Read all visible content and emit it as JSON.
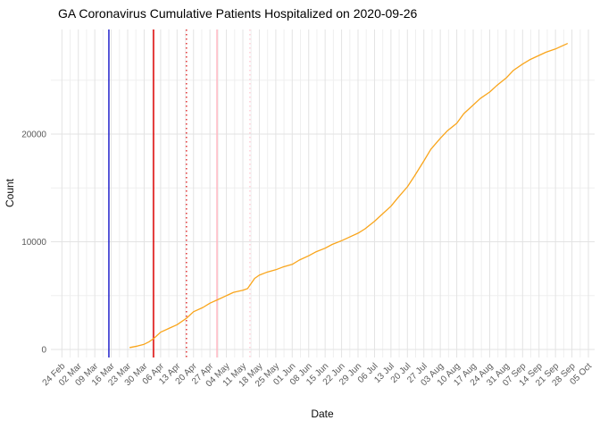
{
  "chart_data": {
    "type": "line",
    "title": "GA Coronavirus Cumulative Patients Hospitalized on 2020-09-26",
    "xlabel": "Date",
    "ylabel": "Count",
    "grid": true,
    "legend": "none",
    "x_axis": {
      "start": "2020-02-24",
      "end": "2020-10-05",
      "tick_interval_days": 7
    },
    "y_axis": {
      "min": 0,
      "max": 29500,
      "major_tick_interval": 10000,
      "minor_tick_interval": 5000
    },
    "x_ticks": [
      {
        "label": "24 Feb",
        "date": "2020-02-24"
      },
      {
        "label": "02 Mar",
        "date": "2020-03-02"
      },
      {
        "label": "09 Mar",
        "date": "2020-03-09"
      },
      {
        "label": "16 Mar",
        "date": "2020-03-16"
      },
      {
        "label": "23 Mar",
        "date": "2020-03-23"
      },
      {
        "label": "30 Mar",
        "date": "2020-03-30"
      },
      {
        "label": "06 Apr",
        "date": "2020-04-06"
      },
      {
        "label": "13 Apr",
        "date": "2020-04-13"
      },
      {
        "label": "20 Apr",
        "date": "2020-04-20"
      },
      {
        "label": "27 Apr",
        "date": "2020-04-27"
      },
      {
        "label": "04 May",
        "date": "2020-05-04"
      },
      {
        "label": "11 May",
        "date": "2020-05-11"
      },
      {
        "label": "18 May",
        "date": "2020-05-18"
      },
      {
        "label": "25 May",
        "date": "2020-05-25"
      },
      {
        "label": "01 Jun",
        "date": "2020-06-01"
      },
      {
        "label": "08 Jun",
        "date": "2020-06-08"
      },
      {
        "label": "15 Jun",
        "date": "2020-06-15"
      },
      {
        "label": "22 Jun",
        "date": "2020-06-22"
      },
      {
        "label": "29 Jun",
        "date": "2020-06-29"
      },
      {
        "label": "06 Jul",
        "date": "2020-07-06"
      },
      {
        "label": "13 Jul",
        "date": "2020-07-13"
      },
      {
        "label": "20 Jul",
        "date": "2020-07-20"
      },
      {
        "label": "27 Jul",
        "date": "2020-07-27"
      },
      {
        "label": "03 Aug",
        "date": "2020-08-03"
      },
      {
        "label": "10 Aug",
        "date": "2020-08-10"
      },
      {
        "label": "17 Aug",
        "date": "2020-08-17"
      },
      {
        "label": "24 Aug",
        "date": "2020-08-24"
      },
      {
        "label": "31 Aug",
        "date": "2020-08-31"
      },
      {
        "label": "07 Sep",
        "date": "2020-09-07"
      },
      {
        "label": "14 Sep",
        "date": "2020-09-14"
      },
      {
        "label": "21 Sep",
        "date": "2020-09-21"
      },
      {
        "label": "28 Sep",
        "date": "2020-09-28"
      },
      {
        "label": "05 Oct",
        "date": "2020-10-05"
      }
    ],
    "y_ticks": [
      {
        "label": "0",
        "value": 0
      },
      {
        "label": "10000",
        "value": 10000
      },
      {
        "label": "20000",
        "value": 20000
      }
    ],
    "vlines": [
      {
        "date": "2020-03-15",
        "color": "#2222CC",
        "style": "solid"
      },
      {
        "date": "2020-04-03",
        "color": "#DD0000",
        "style": "solid"
      },
      {
        "date": "2020-04-17",
        "color": "#E03333",
        "style": "dotted"
      },
      {
        "date": "2020-04-30",
        "color": "#FFB6C1",
        "style": "solid"
      },
      {
        "date": "2020-05-14",
        "color": "#FFCCD5",
        "style": "dotted"
      }
    ],
    "style": {
      "line_color": "#F9A51B",
      "grid_major": "#E3E3E3",
      "grid_minor": "#EFEFEF"
    },
    "series": [
      {
        "name": "cumulative-patients-hospitalized",
        "color": "#F9A51B",
        "points": [
          [
            "2020-03-24",
            180
          ],
          [
            "2020-03-27",
            310
          ],
          [
            "2020-03-30",
            480
          ],
          [
            "2020-04-01",
            700
          ],
          [
            "2020-04-03",
            1000
          ],
          [
            "2020-04-06",
            1600
          ],
          [
            "2020-04-10",
            2000
          ],
          [
            "2020-04-13",
            2300
          ],
          [
            "2020-04-17",
            2900
          ],
          [
            "2020-04-20",
            3500
          ],
          [
            "2020-04-24",
            3900
          ],
          [
            "2020-04-27",
            4300
          ],
          [
            "2020-04-30",
            4600
          ],
          [
            "2020-05-04",
            5000
          ],
          [
            "2020-05-07",
            5300
          ],
          [
            "2020-05-11",
            5500
          ],
          [
            "2020-05-13",
            5650
          ],
          [
            "2020-05-16",
            6600
          ],
          [
            "2020-05-18",
            6900
          ],
          [
            "2020-05-21",
            7150
          ],
          [
            "2020-05-25",
            7400
          ],
          [
            "2020-05-28",
            7650
          ],
          [
            "2020-06-01",
            7900
          ],
          [
            "2020-06-04",
            8300
          ],
          [
            "2020-06-08",
            8700
          ],
          [
            "2020-06-11",
            9050
          ],
          [
            "2020-06-15",
            9400
          ],
          [
            "2020-06-18",
            9750
          ],
          [
            "2020-06-22",
            10100
          ],
          [
            "2020-06-25",
            10400
          ],
          [
            "2020-06-29",
            10800
          ],
          [
            "2020-07-02",
            11200
          ],
          [
            "2020-07-06",
            11900
          ],
          [
            "2020-07-09",
            12500
          ],
          [
            "2020-07-13",
            13300
          ],
          [
            "2020-07-16",
            14100
          ],
          [
            "2020-07-20",
            15100
          ],
          [
            "2020-07-23",
            16100
          ],
          [
            "2020-07-27",
            17500
          ],
          [
            "2020-07-30",
            18600
          ],
          [
            "2020-08-03",
            19600
          ],
          [
            "2020-08-06",
            20300
          ],
          [
            "2020-08-10",
            21000
          ],
          [
            "2020-08-13",
            21900
          ],
          [
            "2020-08-17",
            22700
          ],
          [
            "2020-08-20",
            23300
          ],
          [
            "2020-08-24",
            23900
          ],
          [
            "2020-08-27",
            24500
          ],
          [
            "2020-08-31",
            25200
          ],
          [
            "2020-09-03",
            25900
          ],
          [
            "2020-09-07",
            26500
          ],
          [
            "2020-09-10",
            26900
          ],
          [
            "2020-09-14",
            27300
          ],
          [
            "2020-09-17",
            27600
          ],
          [
            "2020-09-21",
            27900
          ],
          [
            "2020-09-24",
            28200
          ],
          [
            "2020-09-26",
            28400
          ]
        ]
      }
    ]
  }
}
